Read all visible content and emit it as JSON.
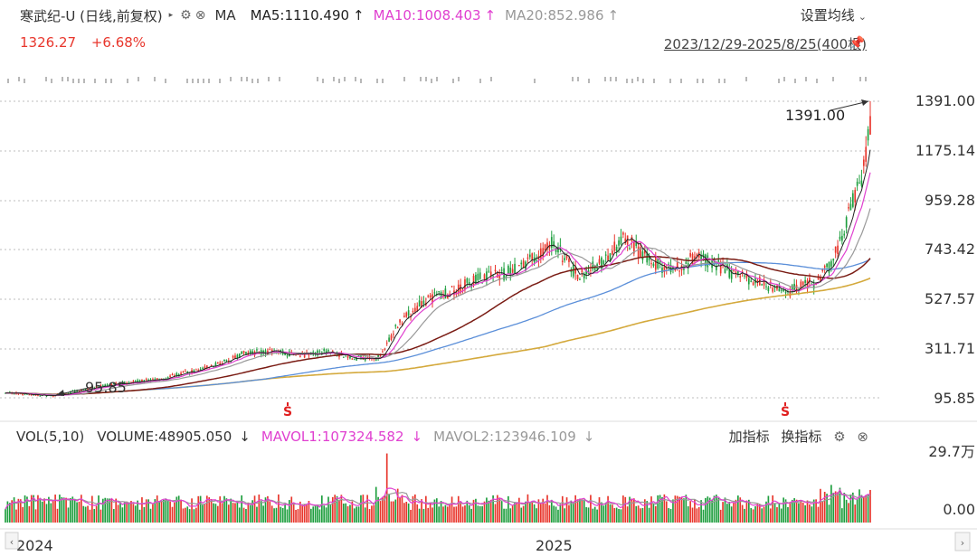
{
  "header": {
    "title": "寒武纪-U (日线,前复权)",
    "indicator": "MA",
    "ma5_label": "MA5:1110.490",
    "ma10_label": "MA10:1008.403",
    "ma20_label": "MA20:852.986",
    "up_arrow": "↑",
    "settings_label": "设置均线",
    "price": "1326.27",
    "change_pct": "+6.68%",
    "date_range": "2023/12/29-2025/8/25(400根)"
  },
  "price_axis": {
    "ticks": [
      "1391.00",
      "1175.14",
      "959.28",
      "743.42",
      "527.57",
      "311.71",
      "95.85"
    ]
  },
  "annotations": {
    "max_label": "1391.00",
    "min_label": "95.85",
    "s_marker": "S"
  },
  "volume_panel": {
    "label": "VOL(5,10)",
    "volume": "VOLUME:48905.050",
    "down_arrow": "↓",
    "mavol1": "MAVOL1:107324.582",
    "mavol2": "MAVOL2:123946.109",
    "add_indicator": "加指标",
    "switch_indicator": "换指标",
    "ticks": [
      "29.7万",
      "0.00"
    ]
  },
  "time_axis": {
    "labels": [
      "2024",
      "2025"
    ]
  },
  "colors": {
    "up": "#e8362c",
    "down": "#1e9e3e",
    "ma5": "#222222",
    "ma10": "#e040d0",
    "ma20": "#999999",
    "ma60": "#7a1c14",
    "ma120": "#5b8fd9",
    "ma250": "#d4a93c"
  },
  "chart_data": {
    "type": "candlestick",
    "x_range": [
      "2023/12/29",
      "2025/8/25"
    ],
    "bars": 400,
    "y_range": [
      95.85,
      1391.0
    ],
    "last_close": 1326.27,
    "max": 1391.0,
    "min": 95.85,
    "ma_values": {
      "MA5": 1110.49,
      "MA10": 1008.403,
      "MA20": 852.986
    },
    "volume_max": "29.7万",
    "last_volume": 48905.05,
    "mavol1": 107324.582,
    "mavol2": 123946.109,
    "price_path_approx": [
      [
        0,
        125
      ],
      [
        30,
        110
      ],
      [
        60,
        105
      ],
      [
        90,
        130
      ],
      [
        120,
        150
      ],
      [
        150,
        165
      ],
      [
        180,
        180
      ],
      [
        210,
        210
      ],
      [
        240,
        240
      ],
      [
        270,
        290
      ],
      [
        300,
        300
      ],
      [
        330,
        280
      ],
      [
        360,
        300
      ],
      [
        390,
        270
      ],
      [
        420,
        270
      ],
      [
        440,
        420
      ],
      [
        470,
        520
      ],
      [
        500,
        560
      ],
      [
        530,
        620
      ],
      [
        560,
        640
      ],
      [
        590,
        700
      ],
      [
        610,
        780
      ],
      [
        640,
        620
      ],
      [
        670,
        700
      ],
      [
        690,
        800
      ],
      [
        710,
        720
      ],
      [
        740,
        650
      ],
      [
        770,
        710
      ],
      [
        790,
        680
      ],
      [
        810,
        640
      ],
      [
        840,
        600
      ],
      [
        870,
        560
      ],
      [
        900,
        600
      ],
      [
        920,
        680
      ],
      [
        940,
        920
      ],
      [
        955,
        1100
      ],
      [
        962,
        1326
      ]
    ]
  }
}
